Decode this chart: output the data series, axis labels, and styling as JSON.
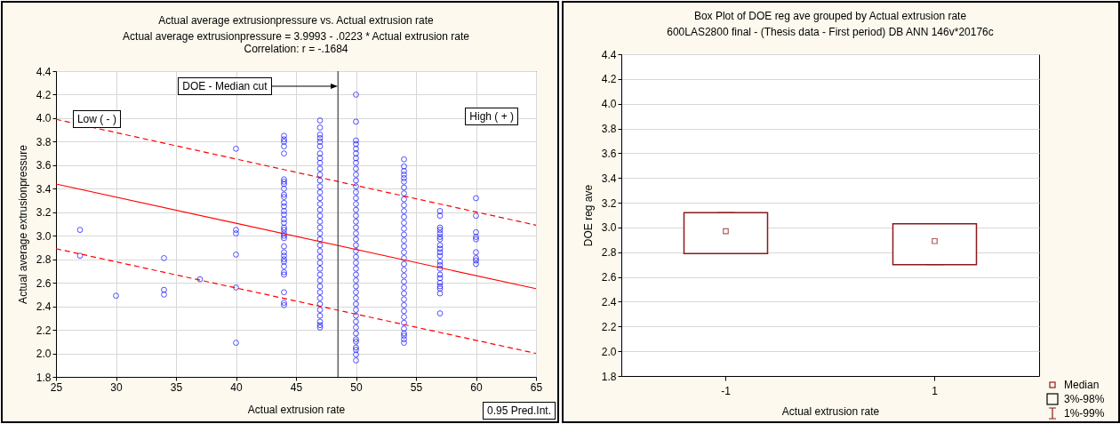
{
  "chart_data": [
    {
      "type": "scatter",
      "title": "Actual average extrusionpressure vs. Actual extrusion rate",
      "subtitle": "Actual average extrusionpressure = 3.9993 - .0223  * Actual extrusion rate",
      "xlabel": "Actual extrusion rate",
      "ylabel": "Actual average extrusionpressure",
      "annotations": [
        "Correlation: r = -.1684",
        "Low ( - )",
        "High ( + )",
        "0.95 Pred.Int."
      ],
      "xlim": [
        25,
        65
      ],
      "xticks": [
        25,
        30,
        35,
        40,
        45,
        50,
        55,
        60,
        65
      ],
      "ylim": [
        1.8,
        4.4
      ],
      "yticks": [
        1.8,
        {
          "value": 2,
          "label": "2.0"
        },
        2.2,
        2.4,
        2.6,
        2.8,
        {
          "value": 3,
          "label": "3.0"
        },
        3.2,
        3.4,
        3.6,
        3.8,
        {
          "value": 4,
          "label": "4.0"
        },
        4.2,
        4.4
      ],
      "grid": true,
      "marker": "circle",
      "ref_lines": [
        {
          "axis": "x",
          "value": 48.5,
          "label": "DOE - Median cut",
          "color": "#404040"
        }
      ],
      "series": [
        {
          "type": "scatter",
          "color": "#0000ff",
          "x": [
            27,
            27,
            30,
            34,
            34,
            34,
            37
          ],
          "values": [
            3.05,
            2.83,
            2.49,
            2.81,
            2.54,
            2.5,
            2.63
          ]
        },
        {
          "type": "scatter",
          "color": "#0000ff",
          "x": [
            40,
            40,
            40,
            40,
            40,
            40
          ],
          "values": [
            3.74,
            3.05,
            3.02,
            2.84,
            2.56,
            2.09
          ]
        },
        {
          "type": "scatter",
          "color": "#0000ff",
          "x": [
            44,
            44,
            44,
            44,
            44,
            44,
            44,
            44,
            44,
            44,
            44,
            44,
            44,
            44,
            44,
            44,
            44,
            44,
            44,
            44,
            44,
            44,
            44,
            44,
            44,
            44,
            44,
            44,
            44,
            44,
            44,
            44,
            44
          ],
          "values": [
            3.85,
            3.82,
            3.8,
            3.76,
            3.7,
            3.48,
            3.46,
            3.44,
            3.4,
            3.35,
            3.33,
            3.28,
            3.25,
            3.21,
            3.18,
            3.14,
            3.11,
            3.07,
            3.05,
            3.02,
            3.0,
            2.98,
            2.91,
            2.86,
            2.83,
            2.8,
            2.78,
            2.74,
            2.69,
            2.67,
            2.52,
            2.43,
            2.41
          ]
        },
        {
          "type": "scatter",
          "color": "#0000ff",
          "x": [
            47,
            47,
            47,
            47,
            47,
            47,
            47,
            47,
            47,
            47,
            47,
            47,
            47,
            47,
            47,
            47,
            47,
            47,
            47,
            47,
            47,
            47,
            47,
            47,
            47,
            47,
            47,
            47,
            47,
            47,
            47,
            47,
            47,
            47,
            47,
            47,
            47,
            47
          ],
          "values": [
            3.98,
            3.92,
            3.86,
            3.83,
            3.8,
            3.76,
            3.7,
            3.66,
            3.62,
            3.57,
            3.52,
            3.47,
            3.42,
            3.37,
            3.32,
            3.27,
            3.22,
            3.17,
            3.12,
            3.07,
            3.02,
            2.97,
            2.92,
            2.87,
            2.82,
            2.77,
            2.72,
            2.67,
            2.62,
            2.57,
            2.52,
            2.47,
            2.42,
            2.37,
            2.32,
            2.27,
            2.24,
            2.22
          ]
        },
        {
          "type": "scatter",
          "color": "#0000ff",
          "x": [
            50,
            50,
            50,
            50,
            50,
            50,
            50,
            50,
            50,
            50,
            50,
            50,
            50,
            50,
            50,
            50,
            50,
            50,
            50,
            50,
            50,
            50,
            50,
            50,
            50,
            50,
            50,
            50,
            50,
            50,
            50,
            50,
            50,
            50,
            50,
            50,
            50,
            50,
            50,
            50,
            50,
            50,
            50
          ],
          "values": [
            4.2,
            3.97,
            3.81,
            3.78,
            3.74,
            3.7,
            3.66,
            3.62,
            3.57,
            3.52,
            3.47,
            3.42,
            3.37,
            3.32,
            3.27,
            3.22,
            3.17,
            3.12,
            3.07,
            3.02,
            2.97,
            2.92,
            2.87,
            2.82,
            2.77,
            2.72,
            2.67,
            2.62,
            2.57,
            2.52,
            2.47,
            2.42,
            2.37,
            2.32,
            2.27,
            2.22,
            2.17,
            2.12,
            2.1,
            2.05,
            2.03,
            1.99,
            1.94
          ]
        },
        {
          "type": "scatter",
          "color": "#0000ff",
          "x": [
            54,
            54,
            54,
            54,
            54,
            54,
            54,
            54,
            54,
            54,
            54,
            54,
            54,
            54,
            54,
            54,
            54,
            54,
            54,
            54,
            54,
            54,
            54,
            54,
            54,
            54,
            54,
            54,
            54,
            54,
            54,
            54,
            54,
            54,
            54
          ],
          "values": [
            3.65,
            3.59,
            3.55,
            3.52,
            3.49,
            3.46,
            3.41,
            3.36,
            3.31,
            3.26,
            3.21,
            3.16,
            3.11,
            3.06,
            3.01,
            2.96,
            2.91,
            2.86,
            2.81,
            2.76,
            2.71,
            2.66,
            2.61,
            2.56,
            2.51,
            2.46,
            2.41,
            2.36,
            2.31,
            2.26,
            2.21,
            2.17,
            2.15,
            2.12,
            2.09
          ]
        },
        {
          "type": "scatter",
          "color": "#0000ff",
          "x": [
            57,
            57,
            57,
            57,
            57,
            57,
            57,
            57,
            57,
            57,
            57,
            57,
            57,
            57,
            57,
            57,
            57,
            57,
            57,
            57,
            57
          ],
          "values": [
            3.21,
            3.17,
            3.07,
            3.05,
            3.02,
            2.99,
            2.97,
            2.92,
            2.89,
            2.86,
            2.83,
            2.78,
            2.75,
            2.72,
            2.67,
            2.64,
            2.6,
            2.57,
            2.55,
            2.51,
            2.34
          ]
        },
        {
          "type": "scatter",
          "color": "#0000ff",
          "x": [
            60,
            60,
            60,
            60,
            60,
            60,
            60,
            60,
            60
          ],
          "values": [
            3.32,
            3.17,
            3.03,
            2.99,
            2.97,
            2.86,
            2.81,
            2.79,
            2.76
          ]
        },
        {
          "type": "line",
          "color": "#ff0000",
          "line_style": "solid",
          "marker": "none",
          "x": [
            25,
            65
          ],
          "values": [
            3.44,
            2.55
          ]
        },
        {
          "type": "line",
          "color": "#ff0000",
          "line_style": "dashed",
          "marker": "none",
          "x": [
            25,
            65
          ],
          "values": [
            3.99,
            3.09
          ]
        },
        {
          "type": "line",
          "color": "#ff0000",
          "line_style": "dashed",
          "marker": "none",
          "x": [
            25,
            65
          ],
          "values": [
            2.89,
            2.0
          ]
        }
      ]
    },
    {
      "type": "box",
      "title": "Box Plot of DOE reg ave grouped by  Actual extrusion rate",
      "subtitle": "600LAS2800 final - (Thesis data - First period) DB ANN 146v*20176c",
      "xlabel": "Actual extrusion rate",
      "ylabel": "DOE  reg ave",
      "categories": [
        "-1",
        "1"
      ],
      "color": "#8b1a1a",
      "boxes": [
        {
          "low": 2.79,
          "q1": 2.79,
          "median": 2.97,
          "q3": 3.12,
          "high": 3.12
        },
        {
          "low": 2.7,
          "q1": 2.7,
          "median": 2.89,
          "q3": 3.03,
          "high": 3.03
        }
      ],
      "ylim": [
        1.8,
        4.4
      ],
      "yticks": [
        1.8,
        {
          "value": 2,
          "label": "2.0"
        },
        2.2,
        2.4,
        2.6,
        2.8,
        {
          "value": 3,
          "label": "3.0"
        },
        3.2,
        3.4,
        3.6,
        3.8,
        {
          "value": 4,
          "label": "4.0"
        },
        4.2,
        4.4
      ],
      "grid": "y",
      "annotations": [
        "Median",
        "3%-98%",
        "1%-99%"
      ]
    }
  ]
}
